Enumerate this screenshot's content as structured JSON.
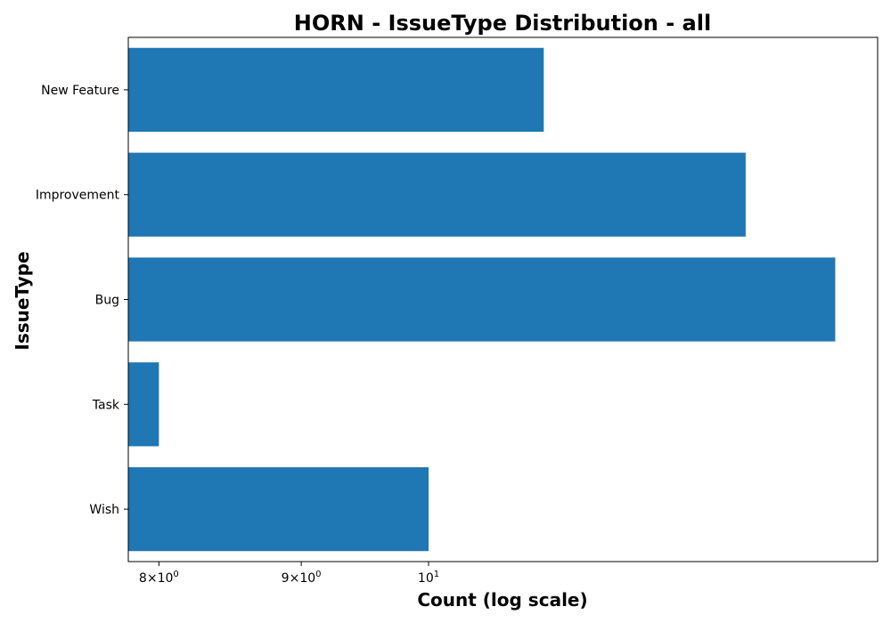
{
  "chart_data": {
    "type": "bar",
    "orientation": "horizontal",
    "title": "HORN - IssueType Distribution - all",
    "xlabel": "Count (log scale)",
    "ylabel": "IssueType",
    "x_scale": "log",
    "categories": [
      "New Feature",
      "Improvement",
      "Bug",
      "Task",
      "Wish"
    ],
    "values": [
      11,
      13,
      14,
      8,
      10
    ],
    "xlim": [
      7.8,
      14.5
    ],
    "x_ticks": [
      {
        "value": 8,
        "base": "8",
        "mult": "×",
        "pow": "10",
        "exp": "0"
      },
      {
        "value": 9,
        "base": "9",
        "mult": "×",
        "pow": "10",
        "exp": "0"
      },
      {
        "value": 10,
        "base": "",
        "mult": "",
        "pow": "10",
        "exp": "1"
      }
    ],
    "bar_color": "#1f77b4",
    "grid": false,
    "legend": "none"
  }
}
